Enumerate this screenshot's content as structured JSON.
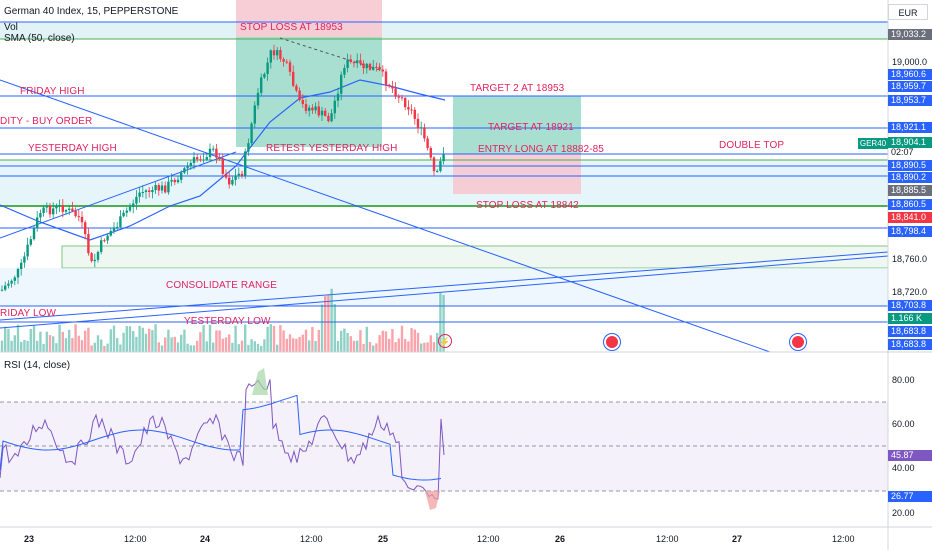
{
  "header": {
    "title": "German 40 Index, 15, PEPPERSTONE",
    "vol_label": "Vol",
    "sma_label": "SMA (50, close)"
  },
  "currency_button": "EUR",
  "rsi_label": "RSI (14, close)",
  "symbol_tag": "GER40",
  "countdown": "02:07",
  "annotations": {
    "stop_loss_top": "STOP LOSS AT 18953",
    "friday_high": "FRIDAY HIGH",
    "liquidity_buy": "DITY - BUY ORDER",
    "yesterday_high": "YESTERDAY HIGH",
    "retest_yesterday_high": "RETEST YESTERDAY HIGH",
    "target_2": "TARGET 2 AT 18953",
    "target_1": "TARGET AT 18921",
    "entry_long": "ENTRY LONG AT 18882-85",
    "double_top": "DOUBLE TOP",
    "stop_loss_bottom": "STOP LOSS AT 18842",
    "consolidate_range": "CONSOLIDATE RANGE",
    "friday_low": "RIDAY LOW",
    "yesterday_low": "YESTERDAY LOW"
  },
  "price_axis_ticks": [
    "19,000.0",
    "18,760.0",
    "18,720.0"
  ],
  "price_badges": [
    {
      "label": "19,033.2",
      "color": "#6b6f7b"
    },
    {
      "label": "18,960.6",
      "color": "#2962ff"
    },
    {
      "label": "18,959.7",
      "color": "#2962ff"
    },
    {
      "label": "18,953.7",
      "color": "#2962ff"
    },
    {
      "label": "18,921.1",
      "color": "#2962ff"
    },
    {
      "label": "18,904.1",
      "color": "#089981"
    },
    {
      "label": "18,890.5",
      "color": "#2962ff"
    },
    {
      "label": "18,890.2",
      "color": "#2962ff"
    },
    {
      "label": "18,885.5",
      "color": "#6b6f7b"
    },
    {
      "label": "18,860.5",
      "color": "#2962ff"
    },
    {
      "label": "18,841.0",
      "color": "#f23645"
    },
    {
      "label": "18,798.4",
      "color": "#2962ff"
    },
    {
      "label": "18,703.8",
      "color": "#2962ff"
    },
    {
      "label": "1.166 K",
      "color": "#089981"
    },
    {
      "label": "18,683.8",
      "color": "#2962ff"
    },
    {
      "label": "18,683.8",
      "color": "#2962ff"
    }
  ],
  "rsi_axis_ticks": [
    "80.00",
    "60.00",
    "40.00",
    "20.00"
  ],
  "rsi_badges": [
    {
      "label": "45.87",
      "color": "#7e57c2"
    },
    {
      "label": "26.77",
      "color": "#2962ff"
    }
  ],
  "time_axis_ticks": [
    "23",
    "12:00",
    "24",
    "12:00",
    "25",
    "12:00",
    "26",
    "12:00",
    "27",
    "12:00"
  ],
  "colors": {
    "up": "#089981",
    "down": "#f23645",
    "annotation": "#e0245e",
    "line_blue": "#2962ff",
    "rsi_purple": "#7e57c2"
  }
}
